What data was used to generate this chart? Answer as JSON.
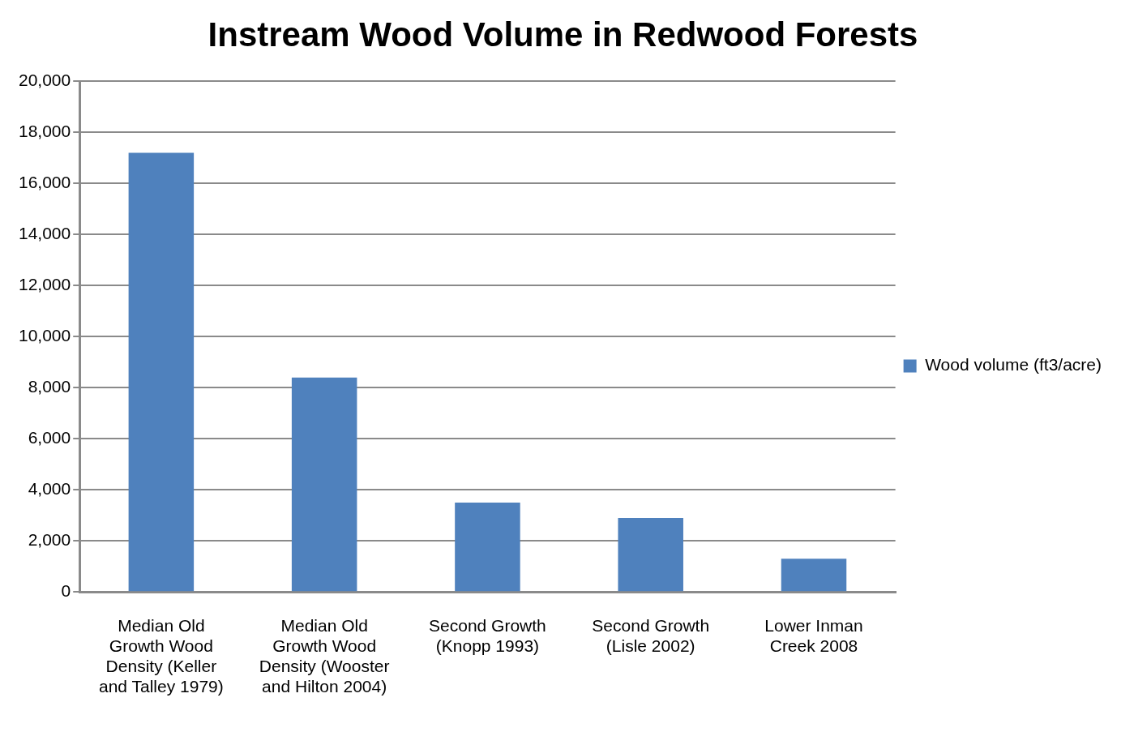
{
  "chart_data": {
    "type": "bar",
    "title": "Instream Wood Volume in Redwood Forests",
    "categories": [
      "Median Old Growth Wood Density (Keller and Talley 1979)",
      "Median Old Growth Wood Density (Wooster and Hilton 2004)",
      "Second Growth (Knopp 1993)",
      "Second Growth (Lisle 2002)",
      "Lower Inman Creek 2008"
    ],
    "series": [
      {
        "name": "Wood volume (ft3/acre)",
        "color": "#4f81bd",
        "values": [
          17200,
          8400,
          3500,
          2900,
          1300
        ]
      }
    ],
    "ylim": [
      0,
      20000
    ],
    "yticks": [
      {
        "value": 0,
        "label": "0"
      },
      {
        "value": 2000,
        "label": "2,000"
      },
      {
        "value": 4000,
        "label": "4,000"
      },
      {
        "value": 6000,
        "label": "6,000"
      },
      {
        "value": 8000,
        "label": "8,000"
      },
      {
        "value": 10000,
        "label": "10,000"
      },
      {
        "value": 12000,
        "label": "12,000"
      },
      {
        "value": 14000,
        "label": "14,000"
      },
      {
        "value": 16000,
        "label": "16,000"
      },
      {
        "value": 18000,
        "label": "18,000"
      },
      {
        "value": 20000,
        "label": "20,000"
      }
    ],
    "grid": "y",
    "legend": "right"
  }
}
